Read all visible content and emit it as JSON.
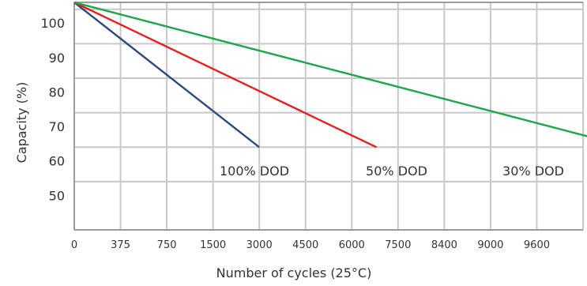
{
  "chart_data": {
    "type": "line",
    "title": "",
    "xlabel": "Number of cycles (25°C)",
    "ylabel": "Capacity (%)",
    "x_ticks": [
      "0",
      "375",
      "750",
      "1500",
      "3000",
      "4500",
      "6000",
      "7500",
      "8400",
      "9000",
      "9600"
    ],
    "y_ticks": [
      100,
      90,
      80,
      70,
      60,
      50
    ],
    "ylim": [
      40,
      106
    ],
    "grid": true,
    "legend": "inline",
    "colors": {
      "grid": "#c8c8c8",
      "axis": "#9a9a9a"
    },
    "series": [
      {
        "name": "100% DOD",
        "color": "#2c4a7c",
        "points": [
          [
            0,
            106
          ],
          [
            3000,
            64
          ]
        ]
      },
      {
        "name": "50% DOD",
        "color": "#e32020",
        "points": [
          [
            0,
            106
          ],
          [
            6800,
            64
          ]
        ]
      },
      {
        "name": "30% DOD",
        "color": "#1fa64a",
        "points": [
          [
            0,
            106
          ],
          [
            10800,
            64
          ]
        ]
      }
    ]
  }
}
